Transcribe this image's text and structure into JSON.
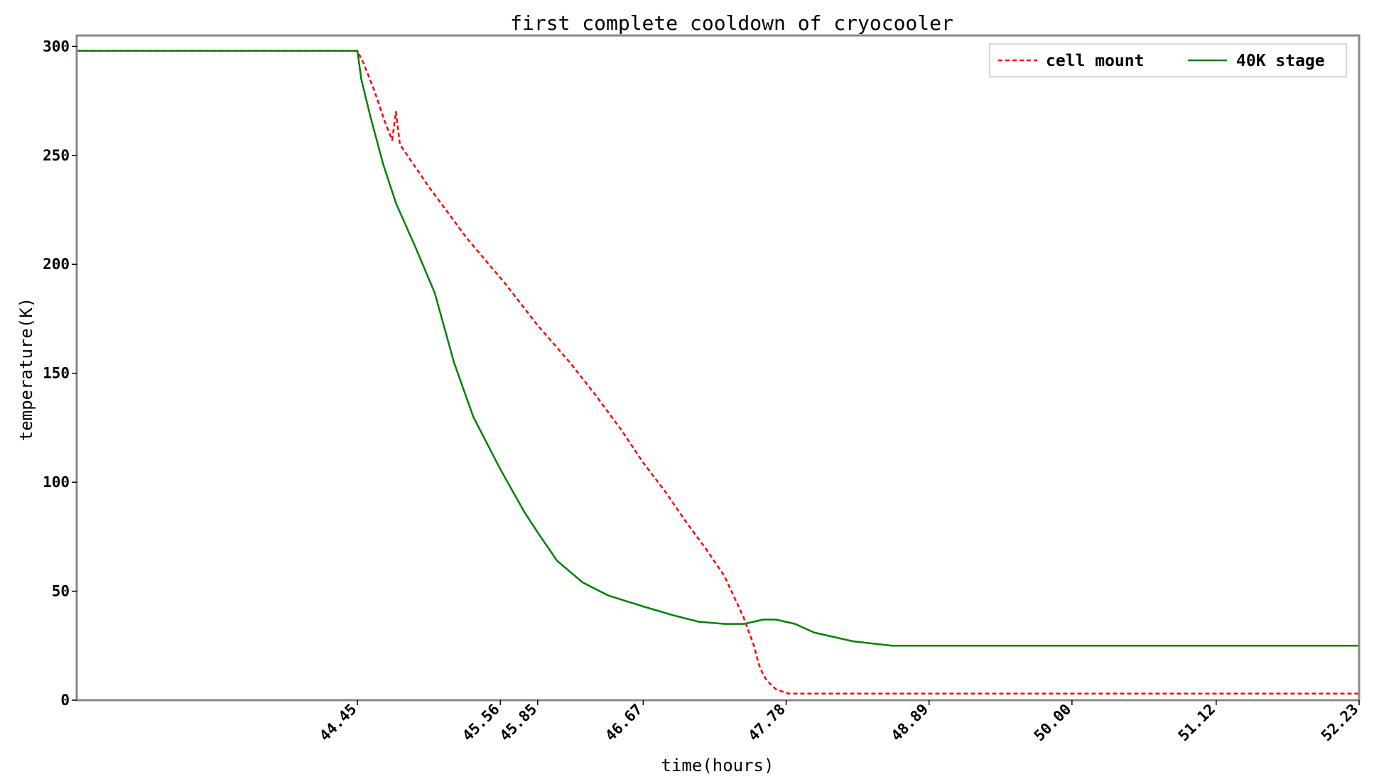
{
  "chart_data": {
    "type": "line",
    "title": "first complete cooldown of cryocooler",
    "xlabel": "time(hours)",
    "ylabel": "temperature(K)",
    "xlim": [
      42.27,
      52.23
    ],
    "ylim": [
      0,
      305
    ],
    "xticks": [
      44.45,
      45.56,
      45.85,
      46.67,
      47.78,
      48.89,
      50.0,
      51.12,
      52.23
    ],
    "xtick_labels": [
      "44.45",
      "45.56",
      "45.85",
      "46.67",
      "47.78",
      "48.89",
      "50.00",
      "51.12",
      "52.23"
    ],
    "yticks": [
      0,
      50,
      100,
      150,
      200,
      250,
      300
    ],
    "ytick_labels": [
      "0",
      "50",
      "100",
      "150",
      "200",
      "250",
      "300"
    ],
    "grid": false,
    "legend_position": "top-right",
    "series": [
      {
        "name": "cell mount",
        "color": "#ff0000",
        "style": "dashed",
        "x": [
          42.27,
          43.0,
          43.5,
          44.0,
          44.3,
          44.45,
          44.5,
          44.58,
          44.62,
          44.66,
          44.72,
          44.75,
          44.78,
          45.0,
          45.3,
          45.6,
          45.85,
          46.1,
          46.3,
          46.5,
          46.67,
          46.85,
          47.0,
          47.15,
          47.3,
          47.45,
          47.53,
          47.57,
          47.6,
          47.63,
          47.7,
          47.8,
          48.0,
          49.0,
          50.0,
          51.0,
          52.23
        ],
        "y": [
          298,
          298,
          298,
          298,
          298,
          298,
          292,
          280,
          273,
          266,
          257,
          270,
          255,
          236,
          212,
          191,
          172,
          155,
          140,
          124,
          109,
          95,
          82,
          70,
          57,
          38,
          25,
          16,
          12,
          9,
          5,
          3,
          3,
          3,
          3,
          3,
          3
        ]
      },
      {
        "name": "40K stage",
        "color": "#008000",
        "style": "solid",
        "x": [
          42.27,
          43.0,
          43.5,
          44.0,
          44.3,
          44.45,
          44.48,
          44.55,
          44.65,
          44.75,
          44.9,
          45.05,
          45.2,
          45.35,
          45.56,
          45.75,
          45.85,
          46.0,
          46.2,
          46.4,
          46.67,
          46.9,
          47.1,
          47.3,
          47.45,
          47.53,
          47.6,
          47.7,
          47.85,
          48.0,
          48.3,
          48.6,
          49.0,
          50.0,
          51.0,
          52.23
        ],
        "y": [
          298,
          298,
          298,
          298,
          298,
          298,
          285,
          268,
          246,
          228,
          208,
          187,
          155,
          130,
          106,
          86,
          77,
          64,
          54,
          48,
          43,
          39,
          36,
          35,
          35,
          36,
          37,
          37,
          35,
          31,
          27,
          25,
          25,
          25,
          25,
          25
        ]
      }
    ]
  }
}
